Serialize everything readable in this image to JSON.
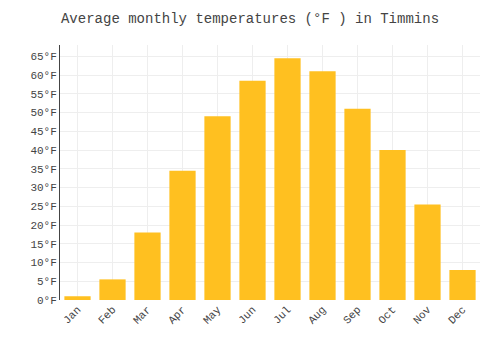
{
  "chart_data": {
    "type": "bar",
    "title": "Average monthly temperatures (°F ) in Timmins",
    "categories": [
      "Jan",
      "Feb",
      "Mar",
      "Apr",
      "May",
      "Jun",
      "Jul",
      "Aug",
      "Sep",
      "Oct",
      "Nov",
      "Dec"
    ],
    "values": [
      1,
      5.5,
      18,
      34.5,
      49,
      58.5,
      64.5,
      61,
      51,
      40,
      25.5,
      8
    ],
    "color": "#FFC020",
    "ylim": [
      0,
      68
    ],
    "yticks": [
      {
        "value": 0,
        "label": "0°F"
      },
      {
        "value": 5,
        "label": "5°F"
      },
      {
        "value": 10,
        "label": "10°F"
      },
      {
        "value": 15,
        "label": "15°F"
      },
      {
        "value": 20,
        "label": "20°F"
      },
      {
        "value": 25,
        "label": "25°F"
      },
      {
        "value": 30,
        "label": "30°F"
      },
      {
        "value": 35,
        "label": "35°F"
      },
      {
        "value": 40,
        "label": "40°F"
      },
      {
        "value": 45,
        "label": "45°F"
      },
      {
        "value": 50,
        "label": "50°F"
      },
      {
        "value": 55,
        "label": "55°F"
      },
      {
        "value": 60,
        "label": "60°F"
      },
      {
        "value": 65,
        "label": "65°F"
      }
    ],
    "grid": true
  }
}
